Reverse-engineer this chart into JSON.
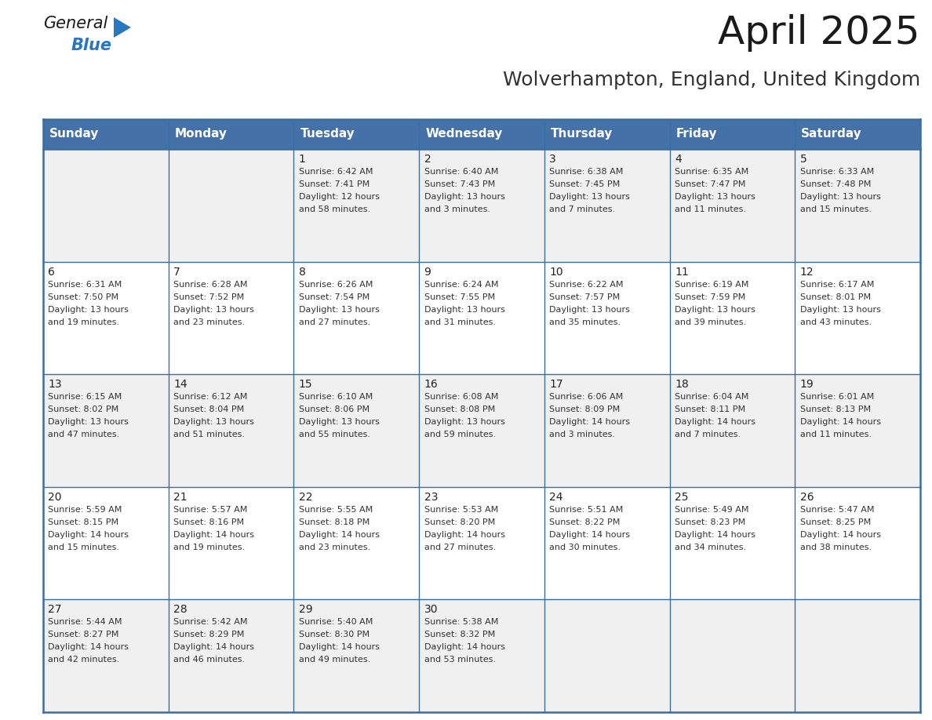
{
  "title": "April 2025",
  "subtitle": "Wolverhampton, England, United Kingdom",
  "header_bg": "#4472a8",
  "header_text_color": "#ffffff",
  "weekdays": [
    "Sunday",
    "Monday",
    "Tuesday",
    "Wednesday",
    "Thursday",
    "Friday",
    "Saturday"
  ],
  "row_bg_odd": "#f0f0f0",
  "row_bg_even": "#ffffff",
  "cell_text_color": "#333333",
  "day_number_color": "#222222",
  "border_color": "#3a6da0",
  "grid_color": "#3a6da0",
  "calendar": [
    [
      {
        "day": "",
        "sunrise": "",
        "sunset": "",
        "daylight": ""
      },
      {
        "day": "",
        "sunrise": "",
        "sunset": "",
        "daylight": ""
      },
      {
        "day": "1",
        "sunrise": "Sunrise: 6:42 AM",
        "sunset": "Sunset: 7:41 PM",
        "daylight": "Daylight: 12 hours\nand 58 minutes."
      },
      {
        "day": "2",
        "sunrise": "Sunrise: 6:40 AM",
        "sunset": "Sunset: 7:43 PM",
        "daylight": "Daylight: 13 hours\nand 3 minutes."
      },
      {
        "day": "3",
        "sunrise": "Sunrise: 6:38 AM",
        "sunset": "Sunset: 7:45 PM",
        "daylight": "Daylight: 13 hours\nand 7 minutes."
      },
      {
        "day": "4",
        "sunrise": "Sunrise: 6:35 AM",
        "sunset": "Sunset: 7:47 PM",
        "daylight": "Daylight: 13 hours\nand 11 minutes."
      },
      {
        "day": "5",
        "sunrise": "Sunrise: 6:33 AM",
        "sunset": "Sunset: 7:48 PM",
        "daylight": "Daylight: 13 hours\nand 15 minutes."
      }
    ],
    [
      {
        "day": "6",
        "sunrise": "Sunrise: 6:31 AM",
        "sunset": "Sunset: 7:50 PM",
        "daylight": "Daylight: 13 hours\nand 19 minutes."
      },
      {
        "day": "7",
        "sunrise": "Sunrise: 6:28 AM",
        "sunset": "Sunset: 7:52 PM",
        "daylight": "Daylight: 13 hours\nand 23 minutes."
      },
      {
        "day": "8",
        "sunrise": "Sunrise: 6:26 AM",
        "sunset": "Sunset: 7:54 PM",
        "daylight": "Daylight: 13 hours\nand 27 minutes."
      },
      {
        "day": "9",
        "sunrise": "Sunrise: 6:24 AM",
        "sunset": "Sunset: 7:55 PM",
        "daylight": "Daylight: 13 hours\nand 31 minutes."
      },
      {
        "day": "10",
        "sunrise": "Sunrise: 6:22 AM",
        "sunset": "Sunset: 7:57 PM",
        "daylight": "Daylight: 13 hours\nand 35 minutes."
      },
      {
        "day": "11",
        "sunrise": "Sunrise: 6:19 AM",
        "sunset": "Sunset: 7:59 PM",
        "daylight": "Daylight: 13 hours\nand 39 minutes."
      },
      {
        "day": "12",
        "sunrise": "Sunrise: 6:17 AM",
        "sunset": "Sunset: 8:01 PM",
        "daylight": "Daylight: 13 hours\nand 43 minutes."
      }
    ],
    [
      {
        "day": "13",
        "sunrise": "Sunrise: 6:15 AM",
        "sunset": "Sunset: 8:02 PM",
        "daylight": "Daylight: 13 hours\nand 47 minutes."
      },
      {
        "day": "14",
        "sunrise": "Sunrise: 6:12 AM",
        "sunset": "Sunset: 8:04 PM",
        "daylight": "Daylight: 13 hours\nand 51 minutes."
      },
      {
        "day": "15",
        "sunrise": "Sunrise: 6:10 AM",
        "sunset": "Sunset: 8:06 PM",
        "daylight": "Daylight: 13 hours\nand 55 minutes."
      },
      {
        "day": "16",
        "sunrise": "Sunrise: 6:08 AM",
        "sunset": "Sunset: 8:08 PM",
        "daylight": "Daylight: 13 hours\nand 59 minutes."
      },
      {
        "day": "17",
        "sunrise": "Sunrise: 6:06 AM",
        "sunset": "Sunset: 8:09 PM",
        "daylight": "Daylight: 14 hours\nand 3 minutes."
      },
      {
        "day": "18",
        "sunrise": "Sunrise: 6:04 AM",
        "sunset": "Sunset: 8:11 PM",
        "daylight": "Daylight: 14 hours\nand 7 minutes."
      },
      {
        "day": "19",
        "sunrise": "Sunrise: 6:01 AM",
        "sunset": "Sunset: 8:13 PM",
        "daylight": "Daylight: 14 hours\nand 11 minutes."
      }
    ],
    [
      {
        "day": "20",
        "sunrise": "Sunrise: 5:59 AM",
        "sunset": "Sunset: 8:15 PM",
        "daylight": "Daylight: 14 hours\nand 15 minutes."
      },
      {
        "day": "21",
        "sunrise": "Sunrise: 5:57 AM",
        "sunset": "Sunset: 8:16 PM",
        "daylight": "Daylight: 14 hours\nand 19 minutes."
      },
      {
        "day": "22",
        "sunrise": "Sunrise: 5:55 AM",
        "sunset": "Sunset: 8:18 PM",
        "daylight": "Daylight: 14 hours\nand 23 minutes."
      },
      {
        "day": "23",
        "sunrise": "Sunrise: 5:53 AM",
        "sunset": "Sunset: 8:20 PM",
        "daylight": "Daylight: 14 hours\nand 27 minutes."
      },
      {
        "day": "24",
        "sunrise": "Sunrise: 5:51 AM",
        "sunset": "Sunset: 8:22 PM",
        "daylight": "Daylight: 14 hours\nand 30 minutes."
      },
      {
        "day": "25",
        "sunrise": "Sunrise: 5:49 AM",
        "sunset": "Sunset: 8:23 PM",
        "daylight": "Daylight: 14 hours\nand 34 minutes."
      },
      {
        "day": "26",
        "sunrise": "Sunrise: 5:47 AM",
        "sunset": "Sunset: 8:25 PM",
        "daylight": "Daylight: 14 hours\nand 38 minutes."
      }
    ],
    [
      {
        "day": "27",
        "sunrise": "Sunrise: 5:44 AM",
        "sunset": "Sunset: 8:27 PM",
        "daylight": "Daylight: 14 hours\nand 42 minutes."
      },
      {
        "day": "28",
        "sunrise": "Sunrise: 5:42 AM",
        "sunset": "Sunset: 8:29 PM",
        "daylight": "Daylight: 14 hours\nand 46 minutes."
      },
      {
        "day": "29",
        "sunrise": "Sunrise: 5:40 AM",
        "sunset": "Sunset: 8:30 PM",
        "daylight": "Daylight: 14 hours\nand 49 minutes."
      },
      {
        "day": "30",
        "sunrise": "Sunrise: 5:38 AM",
        "sunset": "Sunset: 8:32 PM",
        "daylight": "Daylight: 14 hours\nand 53 minutes."
      },
      {
        "day": "",
        "sunrise": "",
        "sunset": "",
        "daylight": ""
      },
      {
        "day": "",
        "sunrise": "",
        "sunset": "",
        "daylight": ""
      },
      {
        "day": "",
        "sunrise": "",
        "sunset": "",
        "daylight": ""
      }
    ]
  ],
  "logo_text_general": "General",
  "logo_text_blue": "Blue",
  "logo_general_color": "#1a1a1a",
  "logo_blue_color": "#2878c0",
  "logo_triangle_color": "#2878c0",
  "title_fontsize": 36,
  "subtitle_fontsize": 18,
  "header_fontsize": 11,
  "cell_day_fontsize": 10,
  "cell_info_fontsize": 8
}
